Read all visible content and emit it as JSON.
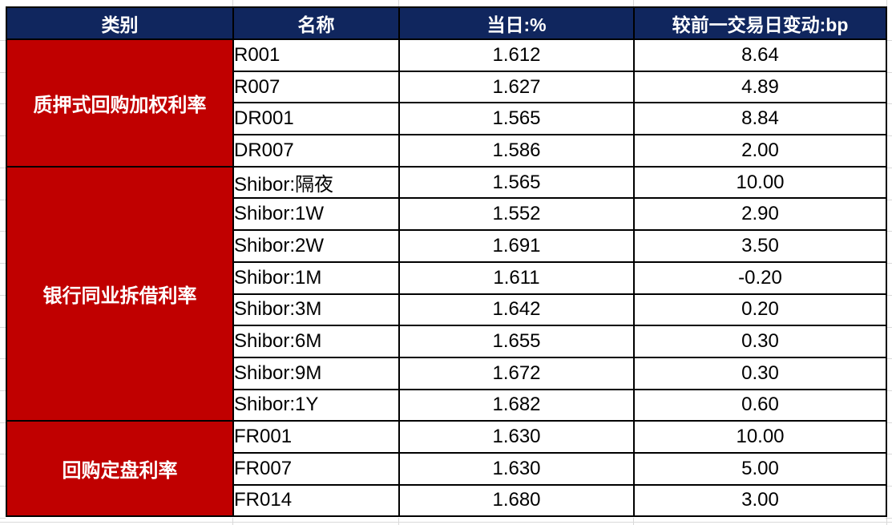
{
  "colors": {
    "header_bg": "#10265e",
    "header_text": "#ffffff",
    "category_bg": "#c00000",
    "category_text": "#ffffff",
    "body_text": "#000000",
    "border": "#000000",
    "margin_gridline": "#d9d9d9"
  },
  "table": {
    "columns": [
      "类别",
      "名称",
      "当日:%",
      "较前一交易日变动:bp"
    ],
    "groups": [
      {
        "category": "质押式回购加权利率",
        "rows": [
          {
            "name": "R001",
            "today": "1.612",
            "change": "8.64"
          },
          {
            "name": "R007",
            "today": "1.627",
            "change": "4.89"
          },
          {
            "name": "DR001",
            "today": "1.565",
            "change": "8.84"
          },
          {
            "name": "DR007",
            "today": "1.586",
            "change": "2.00"
          }
        ]
      },
      {
        "category": "银行同业拆借利率",
        "rows": [
          {
            "name": "Shibor:隔夜",
            "today": "1.565",
            "change": "10.00"
          },
          {
            "name": "Shibor:1W",
            "today": "1.552",
            "change": "2.90"
          },
          {
            "name": "Shibor:2W",
            "today": "1.691",
            "change": "3.50"
          },
          {
            "name": "Shibor:1M",
            "today": "1.611",
            "change": "-0.20"
          },
          {
            "name": "Shibor:3M",
            "today": "1.642",
            "change": "0.20"
          },
          {
            "name": "Shibor:6M",
            "today": "1.655",
            "change": "0.30"
          },
          {
            "name": "Shibor:9M",
            "today": "1.672",
            "change": "0.30"
          },
          {
            "name": "Shibor:1Y",
            "today": "1.682",
            "change": "0.60"
          }
        ]
      },
      {
        "category": "回购定盘利率",
        "rows": [
          {
            "name": "FR001",
            "today": "1.630",
            "change": "10.00"
          },
          {
            "name": "FR007",
            "today": "1.630",
            "change": "5.00"
          },
          {
            "name": "FR014",
            "today": "1.680",
            "change": "3.00"
          }
        ]
      }
    ]
  },
  "chart_data": {
    "type": "table",
    "title": "",
    "columns": [
      "类别",
      "名称",
      "当日:%",
      "较前一交易日变动:bp"
    ],
    "rows": [
      [
        "质押式回购加权利率",
        "R001",
        1.612,
        8.64
      ],
      [
        "质押式回购加权利率",
        "R007",
        1.627,
        4.89
      ],
      [
        "质押式回购加权利率",
        "DR001",
        1.565,
        8.84
      ],
      [
        "质押式回购加权利率",
        "DR007",
        1.586,
        2.0
      ],
      [
        "银行同业拆借利率",
        "Shibor:隔夜",
        1.565,
        10.0
      ],
      [
        "银行同业拆借利率",
        "Shibor:1W",
        1.552,
        2.9
      ],
      [
        "银行同业拆借利率",
        "Shibor:2W",
        1.691,
        3.5
      ],
      [
        "银行同业拆借利率",
        "Shibor:1M",
        1.611,
        -0.2
      ],
      [
        "银行同业拆借利率",
        "Shibor:3M",
        1.642,
        0.2
      ],
      [
        "银行同业拆借利率",
        "Shibor:6M",
        1.655,
        0.3
      ],
      [
        "银行同业拆借利率",
        "Shibor:9M",
        1.672,
        0.3
      ],
      [
        "银行同业拆借利率",
        "Shibor:1Y",
        1.682,
        0.6
      ],
      [
        "回购定盘利率",
        "FR001",
        1.63,
        10.0
      ],
      [
        "回购定盘利率",
        "FR007",
        1.63,
        5.0
      ],
      [
        "回购定盘利率",
        "FR014",
        1.68,
        3.0
      ]
    ]
  }
}
